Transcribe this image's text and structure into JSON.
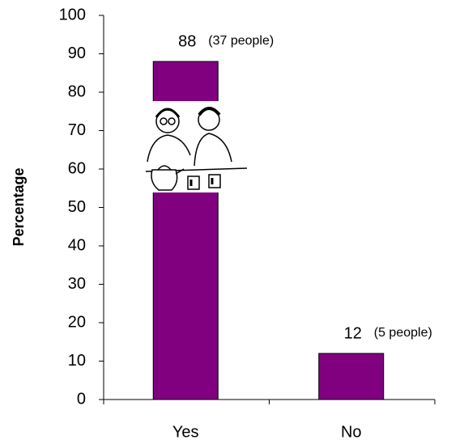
{
  "chart_data": {
    "type": "bar",
    "y_label": "Percentage",
    "categories": [
      "Yes",
      "No"
    ],
    "values": [
      88,
      12
    ],
    "annotations": [
      "(37 people)",
      "(5 people)"
    ],
    "color": "#800080",
    "ylim": [
      0,
      100
    ],
    "yticks": [
      0,
      10,
      20,
      30,
      40,
      50,
      60,
      70,
      80,
      90,
      100
    ]
  }
}
